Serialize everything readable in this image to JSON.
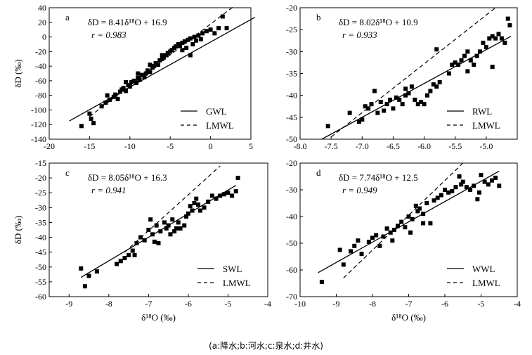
{
  "caption": "(a:降水;b:河水;c:泉水;d:井水)",
  "chart_data": [
    {
      "type": "scatter",
      "panel": "a",
      "equation": "δD = 8.41δ¹⁸O + 16.9",
      "r_text": "r = 0.983",
      "ylabel": "δD (‰)",
      "xlabel": "",
      "xlim": [
        -20,
        5
      ],
      "ylim": [
        -140,
        40
      ],
      "xticks": [
        -20,
        -15,
        -10,
        -5,
        0,
        5
      ],
      "yticks": [
        -140,
        -120,
        -100,
        -80,
        -60,
        -40,
        -20,
        0,
        20,
        40
      ],
      "legend": [
        "GWL",
        "LMWL"
      ],
      "fit_line": [
        [
          -17.5,
          -115
        ],
        [
          5.5,
          27
        ]
      ],
      "lmwl_line": [
        [
          -15,
          -109
        ],
        [
          3,
          43
        ]
      ],
      "points": [
        [
          -16,
          -122
        ],
        [
          -15,
          -105
        ],
        [
          -14.8,
          -112
        ],
        [
          -14.5,
          -118
        ],
        [
          -13.5,
          -95
        ],
        [
          -13,
          -90
        ],
        [
          -12.5,
          -86
        ],
        [
          -12,
          -82
        ],
        [
          -11.8,
          -79
        ],
        [
          -11.5,
          -85
        ],
        [
          -11.2,
          -75
        ],
        [
          -11,
          -72
        ],
        [
          -10.8,
          -70
        ],
        [
          -10.5,
          -74
        ],
        [
          -10.2,
          -66
        ],
        [
          -10,
          -68
        ],
        [
          -9.8,
          -62
        ],
        [
          -9.5,
          -60
        ],
        [
          -9.2,
          -63
        ],
        [
          -9,
          -56
        ],
        [
          -8.8,
          -59
        ],
        [
          -8.5,
          -52
        ],
        [
          -8.2,
          -55
        ],
        [
          -8,
          -50
        ],
        [
          -7.8,
          -46
        ],
        [
          -7.5,
          -48
        ],
        [
          -7.2,
          -42
        ],
        [
          -7,
          -40
        ],
        [
          -6.8,
          -36
        ],
        [
          -6.5,
          -38
        ],
        [
          -6.3,
          -32
        ],
        [
          -6,
          -30
        ],
        [
          -5.8,
          -28
        ],
        [
          -5.5,
          -25
        ],
        [
          -5.3,
          -22
        ],
        [
          -5,
          -20
        ],
        [
          -4.8,
          -18
        ],
        [
          -4.5,
          -15
        ],
        [
          -4.3,
          -13
        ],
        [
          -4,
          -10
        ],
        [
          -3.8,
          -12
        ],
        [
          -3.5,
          -8
        ],
        [
          -3.2,
          -6
        ],
        [
          -3,
          -15
        ],
        [
          -2.8,
          -4
        ],
        [
          -2.5,
          -2
        ],
        [
          -2.2,
          -10
        ],
        [
          -2,
          0
        ],
        [
          -1.8,
          -5
        ],
        [
          -1.5,
          2
        ],
        [
          -1.2,
          -3
        ],
        [
          -1,
          5
        ],
        [
          -0.5,
          8
        ],
        [
          0,
          10
        ],
        [
          0.5,
          5
        ],
        [
          1,
          12
        ],
        [
          1.5,
          28
        ],
        [
          2,
          12
        ],
        [
          -2.5,
          -25
        ],
        [
          -3.5,
          -18
        ],
        [
          -6,
          -25
        ],
        [
          -7.5,
          -38
        ],
        [
          -9,
          -50
        ],
        [
          -10.5,
          -62
        ],
        [
          -12.8,
          -80
        ]
      ]
    },
    {
      "type": "scatter",
      "panel": "b",
      "equation": "δD = 8.02δ¹⁸O + 10.9",
      "r_text": "r = 0.933",
      "ylabel": "",
      "xlabel": "",
      "xlim": [
        -8.0,
        -4.5
      ],
      "ylim": [
        -50,
        -20
      ],
      "xticks": [
        -8.0,
        -7.5,
        -7.0,
        -6.5,
        -6.0,
        -5.5,
        -5.0
      ],
      "yticks": [
        -50,
        -45,
        -40,
        -35,
        -30,
        -25,
        -20
      ],
      "legend": [
        "RWL",
        "LMWL"
      ],
      "fit_line": [
        [
          -7.65,
          -50
        ],
        [
          -4.6,
          -26.5
        ]
      ],
      "lmwl_line": [
        [
          -7.5,
          -49.5
        ],
        [
          -4.85,
          -20
        ]
      ],
      "points": [
        [
          -7.55,
          -47
        ],
        [
          -7.2,
          -44
        ],
        [
          -7.05,
          -46
        ],
        [
          -7,
          -45.5
        ],
        [
          -6.95,
          -42.5
        ],
        [
          -6.9,
          -43
        ],
        [
          -6.85,
          -42
        ],
        [
          -6.8,
          -39
        ],
        [
          -6.75,
          -44
        ],
        [
          -6.7,
          -41.5
        ],
        [
          -6.6,
          -42
        ],
        [
          -6.55,
          -41
        ],
        [
          -6.5,
          -43
        ],
        [
          -6.45,
          -40.5
        ],
        [
          -6.4,
          -41
        ],
        [
          -6.35,
          -42
        ],
        [
          -6.3,
          -40
        ],
        [
          -6.25,
          -39.5
        ],
        [
          -6.2,
          -38
        ],
        [
          -6.15,
          -41
        ],
        [
          -6.1,
          -42
        ],
        [
          -6.05,
          -41.5
        ],
        [
          -6,
          -42
        ],
        [
          -5.95,
          -40
        ],
        [
          -5.9,
          -39
        ],
        [
          -5.85,
          -37.5
        ],
        [
          -5.8,
          -38
        ],
        [
          -5.75,
          -37
        ],
        [
          -5.6,
          -35
        ],
        [
          -5.55,
          -33
        ],
        [
          -5.5,
          -32.5
        ],
        [
          -5.45,
          -33
        ],
        [
          -5.4,
          -32
        ],
        [
          -5.35,
          -31
        ],
        [
          -5.3,
          -30
        ],
        [
          -5.25,
          -32
        ],
        [
          -5.2,
          -33
        ],
        [
          -5.15,
          -31
        ],
        [
          -5.1,
          -30
        ],
        [
          -5.05,
          -28
        ],
        [
          -5,
          -29
        ],
        [
          -4.95,
          -27
        ],
        [
          -4.9,
          -26.5
        ],
        [
          -4.85,
          -27
        ],
        [
          -4.8,
          -26
        ],
        [
          -4.75,
          -27
        ],
        [
          -4.7,
          -28
        ],
        [
          -4.65,
          -22.5
        ],
        [
          -4.62,
          -24
        ],
        [
          -5.8,
          -29.5
        ],
        [
          -5.3,
          -34.5
        ],
        [
          -4.9,
          -33.5
        ],
        [
          -6.3,
          -38.5
        ],
        [
          -6.65,
          -43.5
        ]
      ]
    },
    {
      "type": "scatter",
      "panel": "c",
      "equation": "δD = 8.05δ¹⁸O + 16.3",
      "r_text": "r = 0.941",
      "ylabel": "δD (‰)",
      "xlabel": "δ¹⁸O (‰)",
      "xlim": [
        -9.5,
        -4
      ],
      "ylim": [
        -60,
        -15
      ],
      "xticks": [
        -9,
        -8,
        -7,
        -6,
        -5,
        -4
      ],
      "yticks": [
        -60,
        -55,
        -50,
        -45,
        -40,
        -35,
        -30,
        -25,
        -20,
        -15
      ],
      "legend": [
        "SWL",
        "LMWL"
      ],
      "fit_line": [
        [
          -8.7,
          -53.5
        ],
        [
          -4.8,
          -22.5
        ]
      ],
      "lmwl_line": [
        [
          -7.6,
          -45
        ],
        [
          -5.2,
          -16
        ]
      ],
      "points": [
        [
          -8.7,
          -50.5
        ],
        [
          -8.6,
          -56.5
        ],
        [
          -8.5,
          -53
        ],
        [
          -8.3,
          -51.5
        ],
        [
          -7.7,
          -48
        ],
        [
          -7.6,
          -47
        ],
        [
          -7.5,
          -46
        ],
        [
          -7.4,
          -44.5
        ],
        [
          -7.3,
          -42
        ],
        [
          -7.2,
          -40
        ],
        [
          -7.1,
          -41
        ],
        [
          -7,
          -37.5
        ],
        [
          -6.9,
          -39
        ],
        [
          -6.8,
          -36
        ],
        [
          -6.75,
          -42
        ],
        [
          -6.7,
          -38
        ],
        [
          -6.6,
          -35
        ],
        [
          -6.55,
          -37
        ],
        [
          -6.5,
          -36
        ],
        [
          -6.4,
          -34
        ],
        [
          -6.35,
          -38
        ],
        [
          -6.3,
          -37
        ],
        [
          -6.25,
          -35
        ],
        [
          -6.2,
          -37
        ],
        [
          -6.1,
          -36
        ],
        [
          -6.05,
          -33
        ],
        [
          -6,
          -32
        ],
        [
          -5.95,
          -29.5
        ],
        [
          -5.9,
          -31
        ],
        [
          -5.8,
          -27
        ],
        [
          -5.75,
          -29
        ],
        [
          -5.7,
          -31
        ],
        [
          -5.6,
          -30
        ],
        [
          -5.5,
          -28
        ],
        [
          -5.4,
          -26
        ],
        [
          -5.3,
          -27
        ],
        [
          -5.2,
          -26
        ],
        [
          -5.1,
          -25.5
        ],
        [
          -5,
          -25
        ],
        [
          -4.9,
          -26
        ],
        [
          -4.8,
          -24.5
        ],
        [
          -4.75,
          -20
        ],
        [
          -7.35,
          -46
        ],
        [
          -7.8,
          -49
        ],
        [
          -6.95,
          -34
        ],
        [
          -6.85,
          -41.5
        ],
        [
          -6.45,
          -39
        ],
        [
          -5.85,
          -28.5
        ]
      ]
    },
    {
      "type": "scatter",
      "panel": "d",
      "equation": "δD = 7.74δ¹⁸O + 12.5",
      "r_text": "r = 0.949",
      "ylabel": "",
      "xlabel": "δ¹⁸O (‰)",
      "xlim": [
        -10,
        -4
      ],
      "ylim": [
        -70,
        -20
      ],
      "xticks": [
        -10,
        -9,
        -8,
        -7,
        -6,
        -5,
        -4
      ],
      "yticks": [
        -70,
        -60,
        -50,
        -40,
        -30,
        -20
      ],
      "legend": [
        "WWL",
        "LMWL"
      ],
      "fit_line": [
        [
          -9.5,
          -61
        ],
        [
          -4.5,
          -23
        ]
      ],
      "lmwl_line": [
        [
          -8.8,
          -63
        ],
        [
          -5.5,
          -20
        ]
      ],
      "points": [
        [
          -9.4,
          -64.5
        ],
        [
          -8.9,
          -52.5
        ],
        [
          -8.8,
          -58
        ],
        [
          -8.6,
          -53
        ],
        [
          -8.5,
          -51
        ],
        [
          -8.4,
          -49
        ],
        [
          -8.3,
          -54
        ],
        [
          -8.1,
          -49.5
        ],
        [
          -8,
          -48
        ],
        [
          -7.9,
          -47
        ],
        [
          -7.8,
          -51
        ],
        [
          -7.7,
          -47.5
        ],
        [
          -7.6,
          -44.5
        ],
        [
          -7.5,
          -46
        ],
        [
          -7.4,
          -45
        ],
        [
          -7.3,
          -43.5
        ],
        [
          -7.2,
          -42
        ],
        [
          -7.1,
          -44
        ],
        [
          -7,
          -40
        ],
        [
          -6.95,
          -46
        ],
        [
          -6.9,
          -41
        ],
        [
          -6.8,
          -36
        ],
        [
          -6.75,
          -38
        ],
        [
          -6.7,
          -37
        ],
        [
          -6.6,
          -39
        ],
        [
          -6.5,
          -35
        ],
        [
          -6.4,
          -42.5
        ],
        [
          -6.3,
          -34
        ],
        [
          -6.2,
          -33
        ],
        [
          -6.1,
          -32
        ],
        [
          -6,
          -30
        ],
        [
          -5.9,
          -31
        ],
        [
          -5.8,
          -30.5
        ],
        [
          -5.7,
          -29
        ],
        [
          -5.6,
          -25
        ],
        [
          -5.55,
          -28
        ],
        [
          -5.5,
          -27
        ],
        [
          -5.4,
          -29
        ],
        [
          -5.3,
          -30
        ],
        [
          -5.2,
          -28.5
        ],
        [
          -5.1,
          -33.5
        ],
        [
          -5,
          -24.5
        ],
        [
          -4.9,
          -27
        ],
        [
          -4.8,
          -28
        ],
        [
          -4.7,
          -26.5
        ],
        [
          -4.6,
          -25.5
        ],
        [
          -4.5,
          -28.5
        ],
        [
          -6.6,
          -42.5
        ],
        [
          -7.45,
          -49
        ],
        [
          -5.05,
          -31
        ]
      ]
    }
  ]
}
